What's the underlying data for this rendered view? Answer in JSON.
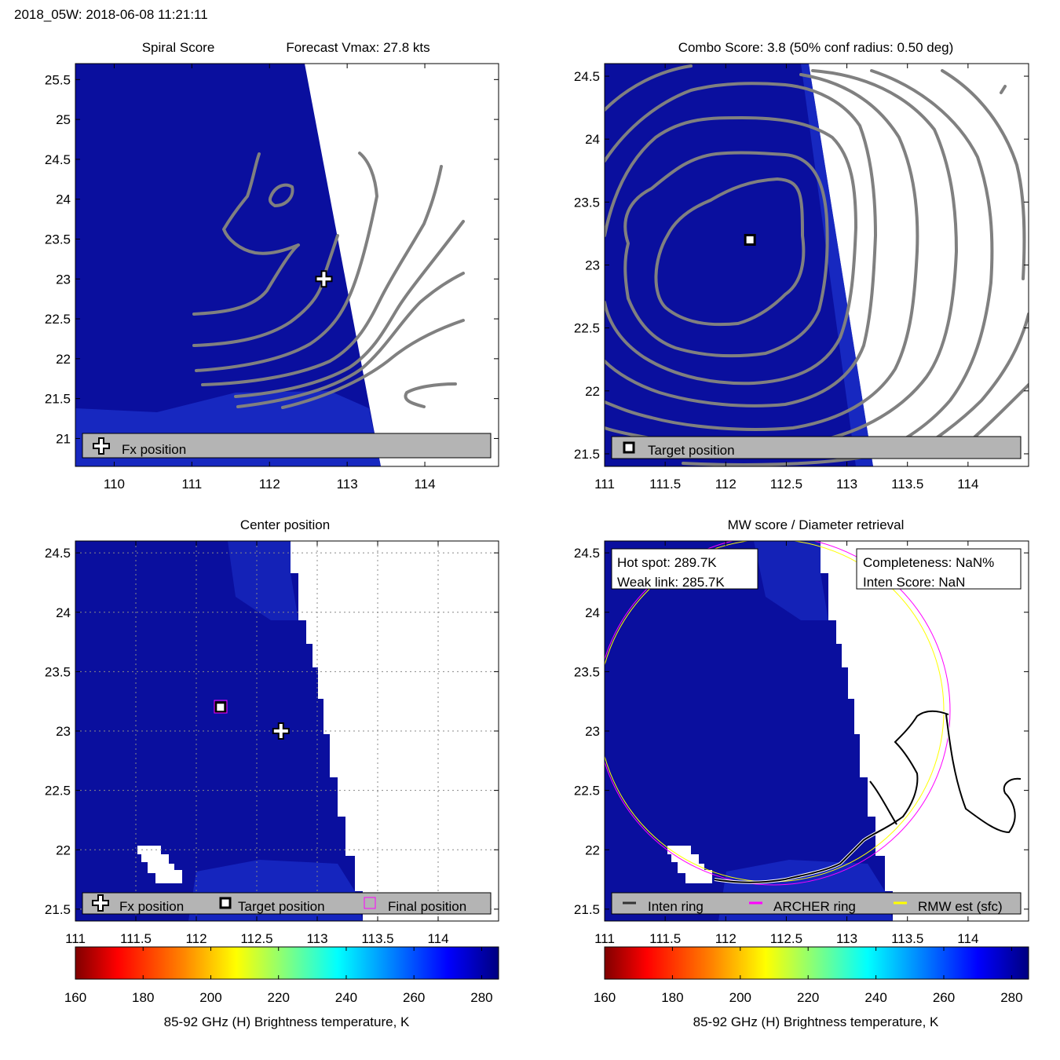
{
  "header": {
    "title": "2018_05W: 2018-06-08 11:21:11"
  },
  "colors": {
    "swath_blue": "#0a0f9e",
    "swath_edge_blue": "#1a2ec8",
    "contour_gray": "#808080",
    "legend_gray": "#b4b4b4",
    "archer_ring": "#ff00ff",
    "rmw_ring": "#ffff00",
    "inten_ring": "#000000",
    "final_marker": "#ff00ff"
  },
  "chart_data": [
    {
      "id": "spiral",
      "type": "heatmap",
      "title_left": "Spiral Score",
      "title_right": "Forecast Vmax: 27.8 kts",
      "xlim": [
        109.5,
        114.95
      ],
      "ylim": [
        20.65,
        25.7
      ],
      "xticks": [
        "110",
        "111",
        "112",
        "113",
        "114"
      ],
      "yticks": [
        "21",
        "21.5",
        "22",
        "22.5",
        "23",
        "23.5",
        "24",
        "24.5",
        "25",
        "25.5"
      ],
      "markers": [
        {
          "name": "Fx position",
          "icon": "plus-icon",
          "x": 112.7,
          "y": 23.0
        }
      ],
      "legend": [
        {
          "icon": "plus-icon",
          "label": "Fx position"
        }
      ]
    },
    {
      "id": "combo",
      "type": "heatmap",
      "title": "Combo Score: 3.8  (50% conf radius: 0.50 deg)",
      "xlim": [
        111.0,
        114.5
      ],
      "ylim": [
        21.4,
        24.6
      ],
      "xticks": [
        "111",
        "111.5",
        "112",
        "112.5",
        "113",
        "113.5",
        "114"
      ],
      "yticks": [
        "21.5",
        "22",
        "22.5",
        "23",
        "23.5",
        "24",
        "24.5"
      ],
      "markers": [
        {
          "name": "Target position",
          "icon": "square-icon",
          "x": 112.2,
          "y": 23.2
        }
      ],
      "legend": [
        {
          "icon": "square-icon",
          "label": "Target position"
        }
      ]
    },
    {
      "id": "center",
      "type": "heatmap",
      "title": "Center position",
      "xlim": [
        111.0,
        114.5
      ],
      "ylim": [
        21.4,
        24.6
      ],
      "xticks": [
        "111",
        "111.5",
        "112",
        "112.5",
        "113",
        "113.5",
        "114"
      ],
      "yticks": [
        "21.5",
        "22",
        "22.5",
        "23",
        "23.5",
        "24",
        "24.5"
      ],
      "grid": true,
      "markers": [
        {
          "name": "Fx position",
          "icon": "plus-icon",
          "x": 112.7,
          "y": 23.0
        },
        {
          "name": "Target position",
          "icon": "square-icon",
          "x": 112.2,
          "y": 23.2
        }
      ],
      "legend": [
        {
          "icon": "plus-icon",
          "label": "Fx position"
        },
        {
          "icon": "square-icon",
          "label": "Target position"
        },
        {
          "icon": "magenta-square-icon",
          "label": "Final position"
        }
      ],
      "colorbar": {
        "ticks": [
          "160",
          "180",
          "200",
          "220",
          "240",
          "260",
          "280"
        ],
        "range": [
          160,
          285
        ],
        "label": "85-92 GHz (H) Brightness temperature, K"
      }
    },
    {
      "id": "mw",
      "type": "heatmap",
      "title": "MW score / Diameter retrieval",
      "xlim": [
        111.0,
        114.5
      ],
      "ylim": [
        21.4,
        24.6
      ],
      "xticks": [
        "111",
        "111.5",
        "112",
        "112.5",
        "113",
        "113.5",
        "114"
      ],
      "yticks": [
        "21.5",
        "22",
        "22.5",
        "23",
        "23.5",
        "24",
        "24.5"
      ],
      "info_left": [
        "Hot spot: 289.7K",
        "Weak link: 285.7K"
      ],
      "info_right": [
        "Completeness: NaN%",
        "Inten Score: NaN"
      ],
      "legend": [
        {
          "icon": "dark-line-icon",
          "label": "Inten ring"
        },
        {
          "icon": "magenta-line-icon",
          "label": "ARCHER ring"
        },
        {
          "icon": "yellow-line-icon",
          "label": "RMW est (sfc)"
        }
      ],
      "colorbar": {
        "ticks": [
          "160",
          "180",
          "200",
          "220",
          "240",
          "260",
          "280"
        ],
        "range": [
          160,
          285
        ],
        "label": "85-92 GHz (H) Brightness temperature, K"
      }
    }
  ]
}
